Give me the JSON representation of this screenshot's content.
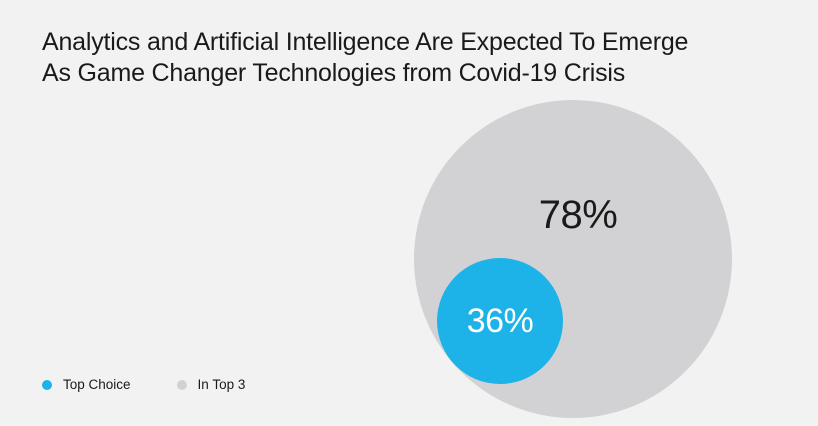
{
  "page": {
    "background_color": "#f2f2f2"
  },
  "title": {
    "line1": "Analytics and Artificial Intelligence Are Expected To Emerge",
    "line2": "As Game Changer Technologies from Covid-19 Crisis",
    "color": "#1a1a1a"
  },
  "chart": {
    "outer": {
      "series_name": "In Top 3",
      "label": "78%",
      "color": "#d2d2d4",
      "label_color": "#1a1a1a"
    },
    "inner": {
      "series_name": "Top Choice",
      "label": "36%",
      "color": "#1db3e8",
      "label_color": "#ffffff"
    }
  },
  "legend": {
    "items": [
      {
        "label": "Top Choice",
        "color": "#1db3e8"
      },
      {
        "label": "In Top 3",
        "color": "#d2d2d4"
      }
    ]
  },
  "chart_data": {
    "type": "pie",
    "variant": "nested-proportional-area-circles",
    "title": "Analytics and Artificial Intelligence Are Expected To Emerge As Game Changer Technologies from Covid-19 Crisis",
    "unit": "%",
    "series": [
      {
        "name": "In Top 3",
        "value": 78,
        "label": "78%",
        "color": "#d2d2d4"
      },
      {
        "name": "Top Choice",
        "value": 36,
        "label": "36%",
        "color": "#1db3e8"
      }
    ],
    "legend_position": "bottom-left",
    "notes": "Smaller cyan circle (Top Choice, 36%) is nested at the lower-left inside the larger gray circle (In Top 3, 78%); circle areas are proportional to values."
  }
}
